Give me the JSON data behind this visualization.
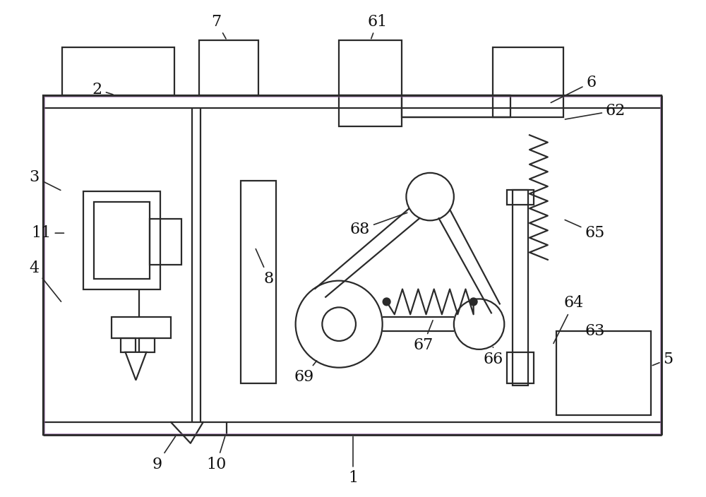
{
  "bg_color": "#ffffff",
  "line_color": "#2a2a2a",
  "lw": 1.6,
  "fig_w": 10.0,
  "fig_h": 7.04
}
